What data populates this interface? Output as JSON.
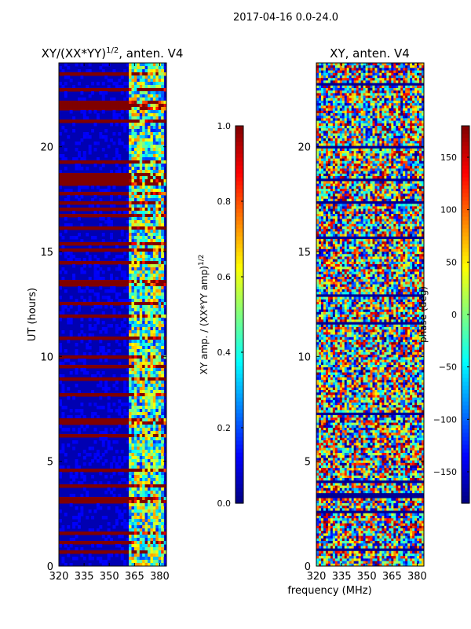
{
  "suptitle": "2017-04-16 0.0-24.0",
  "figure_xlabel": "frequency (MHz)",
  "chart_data": [
    {
      "type": "heatmap",
      "title_main": "XY/(XX*YY)",
      "title_exp": "1/2",
      "title_rest": ", anten. V4",
      "xlabel": "",
      "ylabel": "UT (hours)",
      "xlim": [
        320,
        384
      ],
      "ylim": [
        0,
        24
      ],
      "xticks": [
        320,
        335,
        350,
        365,
        380
      ],
      "yticks": [
        0,
        5,
        10,
        15,
        20
      ],
      "colorbar": {
        "label_main": "XY amp. / (XX*YY amp)",
        "label_exp": "1/2",
        "range": [
          0.0,
          1.0
        ],
        "ticks": [
          "0.0",
          "0.2",
          "0.4",
          "0.6",
          "0.8",
          "1.0"
        ],
        "colormap": "jet"
      },
      "description_values": {
        "background_value": 0.05,
        "saturated_rows_value": 1.0,
        "band_365_382_typical_value": 0.45
      }
    },
    {
      "type": "heatmap",
      "title": "XY, anten. V4",
      "xlabel": "",
      "ylabel": "",
      "xlim": [
        320,
        384
      ],
      "ylim": [
        0,
        24
      ],
      "xticks": [
        320,
        335,
        350,
        365,
        380
      ],
      "yticks": [
        0,
        5,
        10,
        15,
        20
      ],
      "colorbar": {
        "label": "phase (deg)",
        "range": [
          -180,
          180
        ],
        "ticks": [
          "-150",
          "-100",
          "-50",
          "0",
          "50",
          "100",
          "150"
        ],
        "colormap": "jet"
      },
      "description_values": {
        "phase_distribution": "random"
      }
    }
  ],
  "colors": {
    "jet_stops": [
      "#00007f",
      "#0000ff",
      "#007fff",
      "#00ffff",
      "#7fff7f",
      "#ffff00",
      "#ff7f00",
      "#ff0000",
      "#7f0000"
    ]
  }
}
